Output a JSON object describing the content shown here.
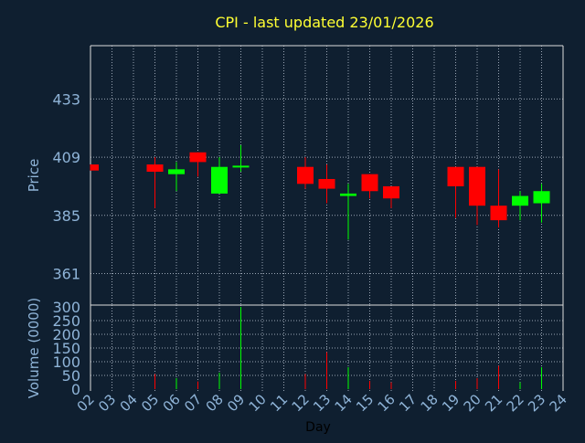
{
  "colors": {
    "background": "#0f1f30",
    "title": "#ffff33",
    "axis_text": "#8fb4d8",
    "grid": "#9aa5b4",
    "up": "#00ff00",
    "down": "#ff0000",
    "plot_border": "#dcdcdc"
  },
  "chart_data": {
    "type": "candlestick",
    "title": "CPI - last updated 23/01/2026",
    "price_ylabel": "Price",
    "volume_ylabel": "Volume (0000)",
    "xlabel": "Day",
    "x_ticks": [
      "02",
      "03",
      "04",
      "05",
      "06",
      "07",
      "08",
      "09",
      "10",
      "11",
      "12",
      "13",
      "14",
      "15",
      "16",
      "17",
      "18",
      "19",
      "20",
      "21",
      "22",
      "23",
      "24"
    ],
    "price_ticks": [
      361,
      385,
      409,
      433
    ],
    "volume_ticks": [
      0,
      50,
      100,
      150,
      200,
      250,
      300
    ],
    "price_ylim": [
      348,
      455
    ],
    "volume_ylim": [
      0,
      300
    ],
    "grid": true,
    "candles": [
      {
        "day": "02",
        "open": 406,
        "close": 403.5,
        "high": 406,
        "low": 403.5,
        "volume": 0
      },
      {
        "day": "05",
        "open": 406,
        "close": 403,
        "high": 409,
        "low": 388,
        "volume": 55
      },
      {
        "day": "06",
        "open": 402,
        "close": 404,
        "high": 407,
        "low": 395,
        "volume": 40
      },
      {
        "day": "07",
        "open": 411,
        "close": 407,
        "high": 411,
        "low": 401,
        "volume": 28
      },
      {
        "day": "08",
        "open": 394,
        "close": 405,
        "high": 409,
        "low": 394,
        "volume": 60
      },
      {
        "day": "09",
        "open": 405,
        "close": 405.5,
        "high": 414,
        "low": 403,
        "volume": 300
      },
      {
        "day": "12",
        "open": 405,
        "close": 398,
        "high": 409,
        "low": 396,
        "volume": 55
      },
      {
        "day": "13",
        "open": 400,
        "close": 396,
        "high": 406,
        "low": 390,
        "volume": 135
      },
      {
        "day": "14",
        "open": 393,
        "close": 394,
        "high": 398,
        "low": 375,
        "volume": 80
      },
      {
        "day": "15",
        "open": 402,
        "close": 395,
        "high": 402,
        "low": 392,
        "volume": 30
      },
      {
        "day": "16",
        "open": 397,
        "close": 392,
        "high": 397,
        "low": 388,
        "volume": 25
      },
      {
        "day": "19",
        "open": 405,
        "close": 397,
        "high": 405,
        "low": 384,
        "volume": 30
      },
      {
        "day": "20",
        "open": 405,
        "close": 389,
        "high": 405,
        "low": 381,
        "volume": 40
      },
      {
        "day": "21",
        "open": 389,
        "close": 383,
        "high": 404,
        "low": 380,
        "volume": 85
      },
      {
        "day": "22",
        "open": 389,
        "close": 393,
        "high": 395,
        "low": 383,
        "volume": 25
      },
      {
        "day": "23",
        "open": 390,
        "close": 395,
        "high": 398,
        "low": 382,
        "volume": 80
      }
    ]
  }
}
